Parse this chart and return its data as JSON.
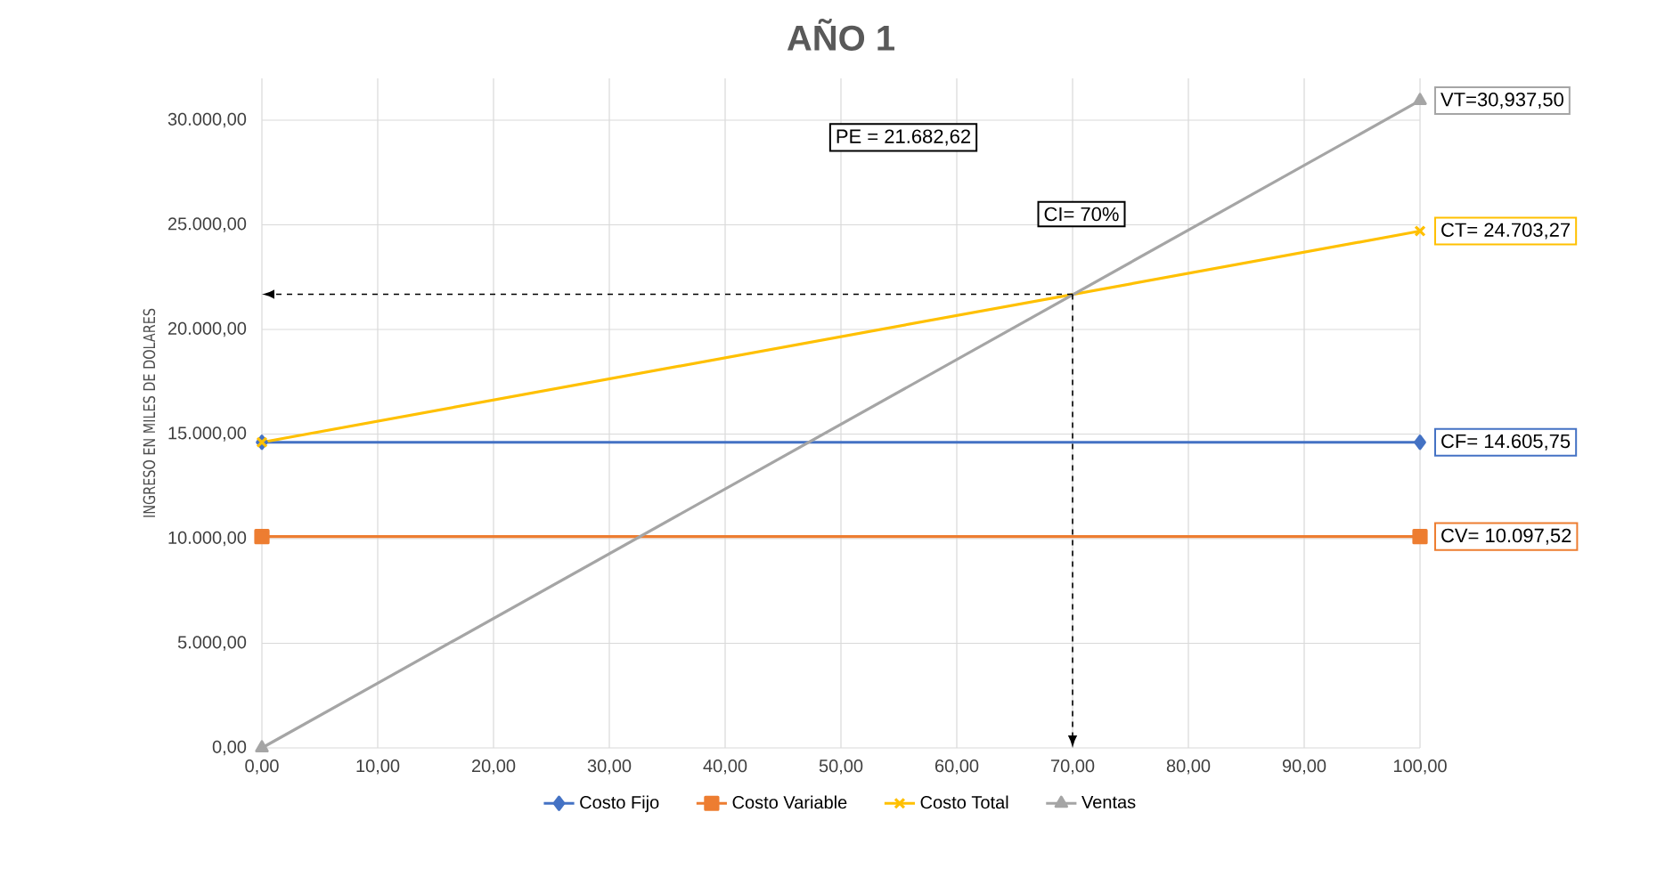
{
  "chart_data": {
    "type": "line",
    "title": "AÑO 1",
    "ylabel": "INGRESO EN MILES DE DOLARES",
    "x": [
      0,
      100
    ],
    "series": [
      {
        "name": "Costo Fijo",
        "color": "#4472c4",
        "marker": "diamond",
        "values": [
          14605.75,
          14605.75
        ]
      },
      {
        "name": "Costo Variable",
        "color": "#ed7d31",
        "marker": "square",
        "values": [
          10097.52,
          10097.52
        ]
      },
      {
        "name": "Costo Total",
        "color": "#ffc000",
        "marker": "cross",
        "values": [
          14605.75,
          24703.27
        ]
      },
      {
        "name": "Ventas",
        "color": "#a5a5a5",
        "marker": "triangle",
        "values": [
          0,
          30937.5
        ]
      }
    ],
    "xlim": [
      0,
      100
    ],
    "xticks": [
      {
        "value": 0,
        "label": "0,00"
      },
      {
        "value": 10,
        "label": "10,00"
      },
      {
        "value": 20,
        "label": "20,00"
      },
      {
        "value": 30,
        "label": "30,00"
      },
      {
        "value": 40,
        "label": "40,00"
      },
      {
        "value": 50,
        "label": "50,00"
      },
      {
        "value": 60,
        "label": "60,00"
      },
      {
        "value": 70,
        "label": "70,00"
      },
      {
        "value": 80,
        "label": "80,00"
      },
      {
        "value": 90,
        "label": "90,00"
      },
      {
        "value": 100,
        "label": "100,00"
      }
    ],
    "ylim": [
      0,
      32000
    ],
    "yticks": [
      {
        "value": 0,
        "label": "0,00"
      },
      {
        "value": 5000,
        "label": "5.000,00"
      },
      {
        "value": 10000,
        "label": "10.000,00"
      },
      {
        "value": 15000,
        "label": "15.000,00"
      },
      {
        "value": 20000,
        "label": "20.000,00"
      },
      {
        "value": 25000,
        "label": "25.000,00"
      },
      {
        "value": 30000,
        "label": "30.000,00"
      }
    ],
    "grid": true,
    "legend": "bottom",
    "ref_lines": [
      {
        "axis": "y",
        "value": 21682.62,
        "color": "#000000",
        "line_style": "dashed"
      },
      {
        "axis": "x",
        "value": 70,
        "color": "#000000",
        "line_style": "dashed"
      }
    ],
    "annotations": [
      "VT=30,937,50",
      "CT= 24.703,27",
      "CF= 14.605,75",
      "CV= 10.097,52",
      "PE = 21.682,62",
      "CI= 70%"
    ]
  }
}
